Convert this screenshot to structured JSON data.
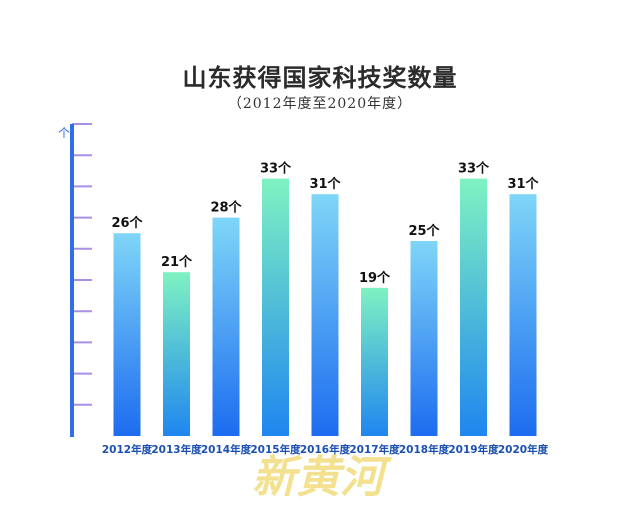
{
  "chart_data": {
    "type": "bar",
    "title": "山东获得国家科技奖数量",
    "subtitle": "（2012年度至2020年度）",
    "ylabel": "个",
    "categories": [
      "2012年度",
      "2013年度",
      "2014年度",
      "2015年度",
      "2016年度",
      "2017年度",
      "2018年度",
      "2019年度",
      "2020年度"
    ],
    "values": [
      26,
      21,
      28,
      33,
      31,
      19,
      25,
      33,
      31
    ],
    "value_labels": [
      "26个",
      "21个",
      "28个",
      "33个",
      "31个",
      "19个",
      "25个",
      "33个",
      "31个"
    ],
    "bar_styles": [
      "blue",
      "green",
      "blue",
      "green",
      "blue",
      "green",
      "blue",
      "green",
      "blue"
    ],
    "ylim": [
      0,
      40
    ],
    "y_tick_count": 10,
    "grid": false,
    "legend": "none"
  },
  "watermark": "新黄河",
  "colors": {
    "axis": "#2f6ee8",
    "x_axis_accent": "#a88df0",
    "tick": "#a98fe6",
    "blue_top": "#7fd6f7",
    "blue_bottom": "#1d6cf0",
    "green_top": "#7ff2c2",
    "green_bottom": "#1f86ef",
    "category_text": "#1b4fb0",
    "value_text": "#111111",
    "watermark": "#f1dc7c"
  }
}
